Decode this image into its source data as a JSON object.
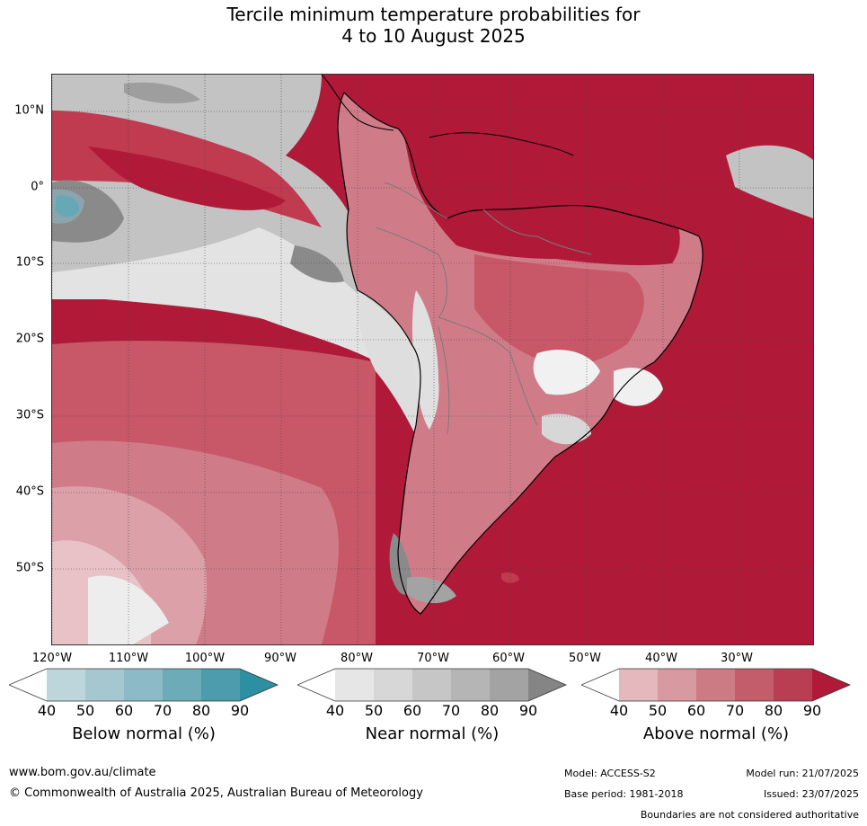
{
  "title": {
    "line1": "Tercile minimum temperature probabilities for",
    "line2": "4 to 10 August 2025"
  },
  "map": {
    "lat_labels": [
      "10°N",
      "0°",
      "10°S",
      "20°S",
      "30°S",
      "40°S",
      "50°S"
    ],
    "lon_labels": [
      "120°W",
      "110°W",
      "100°W",
      "90°W",
      "80°W",
      "70°W",
      "60°W",
      "50°W",
      "40°W",
      "30°W"
    ],
    "colors": {
      "ocean_dominant": "#b01a38",
      "above_90": "#b01a38",
      "above_80": "#c03a50",
      "above_70": "#c85868",
      "above_60": "#d07c88",
      "above_50": "#dba0a8",
      "above_40": "#e8c2c6",
      "near_50": "#e3e3e3",
      "near_70": "#c3c3c3",
      "near_90": "#8a8a8a",
      "below_70": "#8db8c4",
      "below_90": "#2d91a4",
      "coastline": "#000000",
      "borders": "#7a7a7a"
    }
  },
  "colorbars": [
    {
      "name": "below",
      "title": "Below normal (%)",
      "ticks": [
        "40",
        "50",
        "60",
        "70",
        "80",
        "90"
      ],
      "colors": [
        "#ffffff",
        "#bdd6dc",
        "#a5c8d0",
        "#8cbac6",
        "#6dabb9",
        "#4c9cad",
        "#2d8fa2"
      ]
    },
    {
      "name": "near",
      "title": "Near normal (%)",
      "ticks": [
        "40",
        "50",
        "60",
        "70",
        "80",
        "90"
      ],
      "colors": [
        "#ffffff",
        "#e6e6e6",
        "#d7d7d7",
        "#c6c6c6",
        "#b5b5b5",
        "#a3a3a3",
        "#858585"
      ]
    },
    {
      "name": "above",
      "title": "Above normal (%)",
      "ticks": [
        "40",
        "50",
        "60",
        "70",
        "80",
        "90"
      ],
      "colors": [
        "#ffffff",
        "#e4b8bd",
        "#d89aa1",
        "#cc7b85",
        "#c35d6a",
        "#ba3e51",
        "#b01a38"
      ]
    }
  ],
  "footer": {
    "website": "www.bom.gov.au/climate",
    "copyright": "© Commonwealth of Australia 2025, Australian Bureau of Meteorology",
    "model": "Model: ACCESS-S2",
    "model_run": "Model run: 21/07/2025",
    "base_period": "Base period: 1981-2018",
    "issued": "Issued: 23/07/2025",
    "disclaimer": "Boundaries are not considered authoritative"
  }
}
